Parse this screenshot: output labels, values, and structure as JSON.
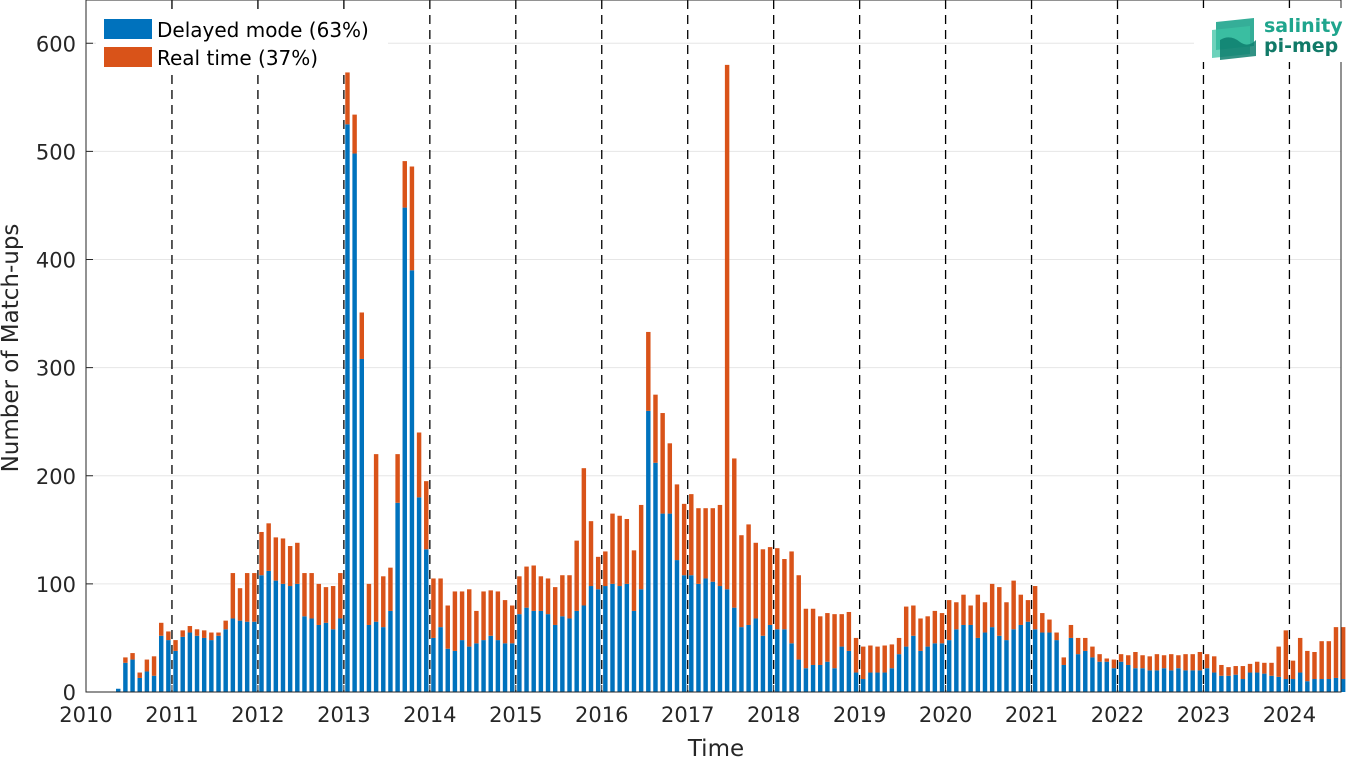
{
  "chart_data": {
    "type": "bar",
    "stacked": true,
    "xlabel": "Time",
    "ylabel": "Number of Match-ups",
    "xlim": [
      2010.0,
      2024.6
    ],
    "ylim": [
      0,
      640
    ],
    "x_ticks": [
      2010,
      2011,
      2012,
      2013,
      2014,
      2015,
      2016,
      2017,
      2018,
      2019,
      2020,
      2021,
      2022,
      2023,
      2024
    ],
    "y_ticks": [
      0,
      100,
      200,
      300,
      400,
      500,
      600
    ],
    "grid": "horizontal",
    "year_separators": "dashed vertical lines at each year",
    "legend_position": "top-left",
    "start": "2010-05",
    "series": [
      {
        "name": "Delayed mode (63%)",
        "color": "#0072BD",
        "values": [
          3,
          27,
          30,
          13,
          19,
          15,
          52,
          48,
          38,
          51,
          55,
          52,
          50,
          48,
          52,
          58,
          68,
          66,
          65,
          65,
          108,
          112,
          103,
          100,
          98,
          100,
          70,
          68,
          62,
          64,
          58,
          68,
          525,
          498,
          308,
          62,
          65,
          60,
          75,
          175,
          448,
          390,
          180,
          132,
          50,
          60,
          40,
          38,
          48,
          42,
          45,
          48,
          52,
          48,
          45,
          45,
          72,
          78,
          75,
          75,
          72,
          62,
          70,
          68,
          75,
          80,
          98,
          95,
          98,
          100,
          98,
          100,
          75,
          95,
          260,
          212,
          165,
          165,
          122,
          108,
          108,
          100,
          105,
          102,
          98,
          95,
          78,
          60,
          62,
          68,
          52,
          62,
          58,
          58,
          45,
          30,
          22,
          25,
          25,
          28,
          22,
          42,
          38,
          18,
          12,
          18,
          18,
          18,
          22,
          35,
          42,
          52,
          38,
          42,
          45,
          45,
          48,
          58,
          62,
          62,
          50,
          55,
          60,
          52,
          48,
          58,
          62,
          65,
          58,
          55,
          55,
          48,
          25,
          50,
          35,
          38,
          32,
          28,
          28,
          22,
          28,
          25,
          22,
          22,
          20,
          20,
          22,
          20,
          22,
          20,
          20,
          20,
          22,
          18,
          15,
          15,
          16,
          12,
          18,
          18,
          17,
          15,
          14,
          12,
          12,
          18,
          10,
          12,
          12,
          12,
          13,
          12
        ],
        "description": "monthly counts, stacked bottom"
      },
      {
        "name": "Real time (37%)",
        "color": "#D95319",
        "values": [
          0,
          5,
          6,
          5,
          11,
          18,
          12,
          8,
          10,
          6,
          6,
          6,
          7,
          7,
          3,
          8,
          42,
          30,
          45,
          45,
          40,
          44,
          40,
          42,
          37,
          38,
          40,
          42,
          38,
          33,
          40,
          42,
          48,
          36,
          43,
          38,
          155,
          47,
          40,
          45,
          43,
          96,
          60,
          63,
          55,
          45,
          40,
          55,
          45,
          53,
          30,
          45,
          42,
          45,
          40,
          35,
          35,
          38,
          42,
          32,
          33,
          35,
          38,
          40,
          65,
          127,
          60,
          30,
          32,
          65,
          65,
          60,
          56,
          78,
          73,
          63,
          93,
          65,
          70,
          66,
          75,
          70,
          65,
          68,
          75,
          485,
          138,
          85,
          93,
          70,
          80,
          72,
          75,
          65,
          85,
          78,
          55,
          52,
          45,
          45,
          50,
          30,
          36,
          32,
          30,
          25,
          24,
          25,
          22,
          15,
          37,
          28,
          30,
          28,
          30,
          28,
          37,
          25,
          28,
          18,
          40,
          28,
          40,
          45,
          35,
          45,
          28,
          20,
          40,
          18,
          12,
          7,
          7,
          12,
          15,
          12,
          10,
          7,
          3,
          8,
          7,
          9,
          15,
          12,
          13,
          15,
          12,
          15,
          12,
          15,
          15,
          17,
          13,
          15,
          10,
          8,
          8,
          12,
          8,
          10,
          10,
          12,
          28,
          45,
          17,
          32,
          28,
          25,
          35,
          35,
          47,
          48
        ]
      }
    ]
  },
  "logo": {
    "line1": "salinity",
    "line2": "pi-mep"
  }
}
